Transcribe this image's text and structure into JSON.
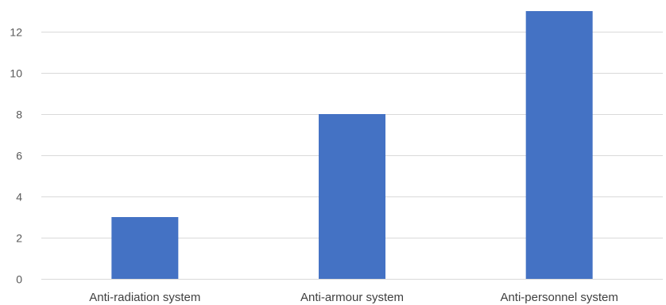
{
  "chart_data": {
    "type": "bar",
    "categories": [
      "Anti-radiation system",
      "Anti-armour system",
      "Anti-personnel system"
    ],
    "values": [
      3,
      8,
      13
    ],
    "ylim": [
      0,
      13
    ],
    "yticks": [
      0,
      2,
      4,
      6,
      8,
      10,
      12
    ],
    "grid": true,
    "legend": "none",
    "title": "",
    "xlabel": "",
    "ylabel": "",
    "colors": {
      "bar": "#4472c4",
      "grid": "#d9d9d9",
      "tick_text": "#595959",
      "category_text": "#404040"
    }
  }
}
